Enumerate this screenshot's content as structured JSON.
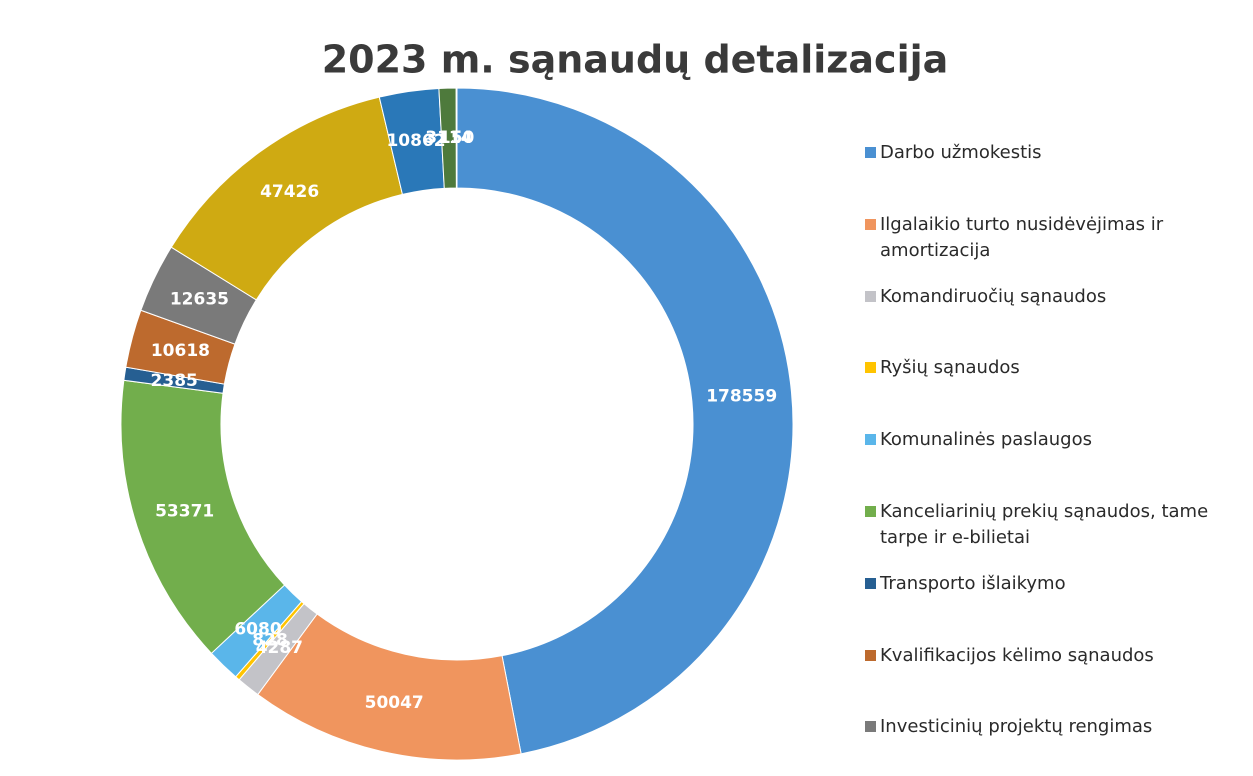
{
  "chart_data": {
    "type": "donut",
    "title": "2023 m. sąnaudų detalizacija",
    "categories": [
      "Darbo užmokestis",
      "Ilgalaikio turto nusidėvėjimas ir amortizacija",
      "Komandiruočių sąnaudos",
      "Ryšių sąnaudos",
      "Komunalinės paslaugos",
      "Kanceliarinių prekių sąnaudos, tame tarpe ir e-bilietai",
      "Transporto išlaikymo",
      "Kvalifikacijos kėlimo sąnaudos",
      "Investicinių projektų rengimas",
      null,
      null,
      null,
      null
    ],
    "values": [
      178559,
      50047,
      4287,
      828,
      6080,
      53371,
      2385,
      10618,
      12635,
      47426,
      10862,
      3114,
      150
    ],
    "colors": [
      "#4a90d2",
      "#f0955e",
      "#c3c3c8",
      "#ffc400",
      "#5ab6ea",
      "#72ae4c",
      "#265f92",
      "#bd6a2e",
      "#7a7a7a",
      "#cfaa12",
      "#2a78b8",
      "#4e7a3c",
      "#8aa8cc"
    ],
    "legend": "right"
  }
}
